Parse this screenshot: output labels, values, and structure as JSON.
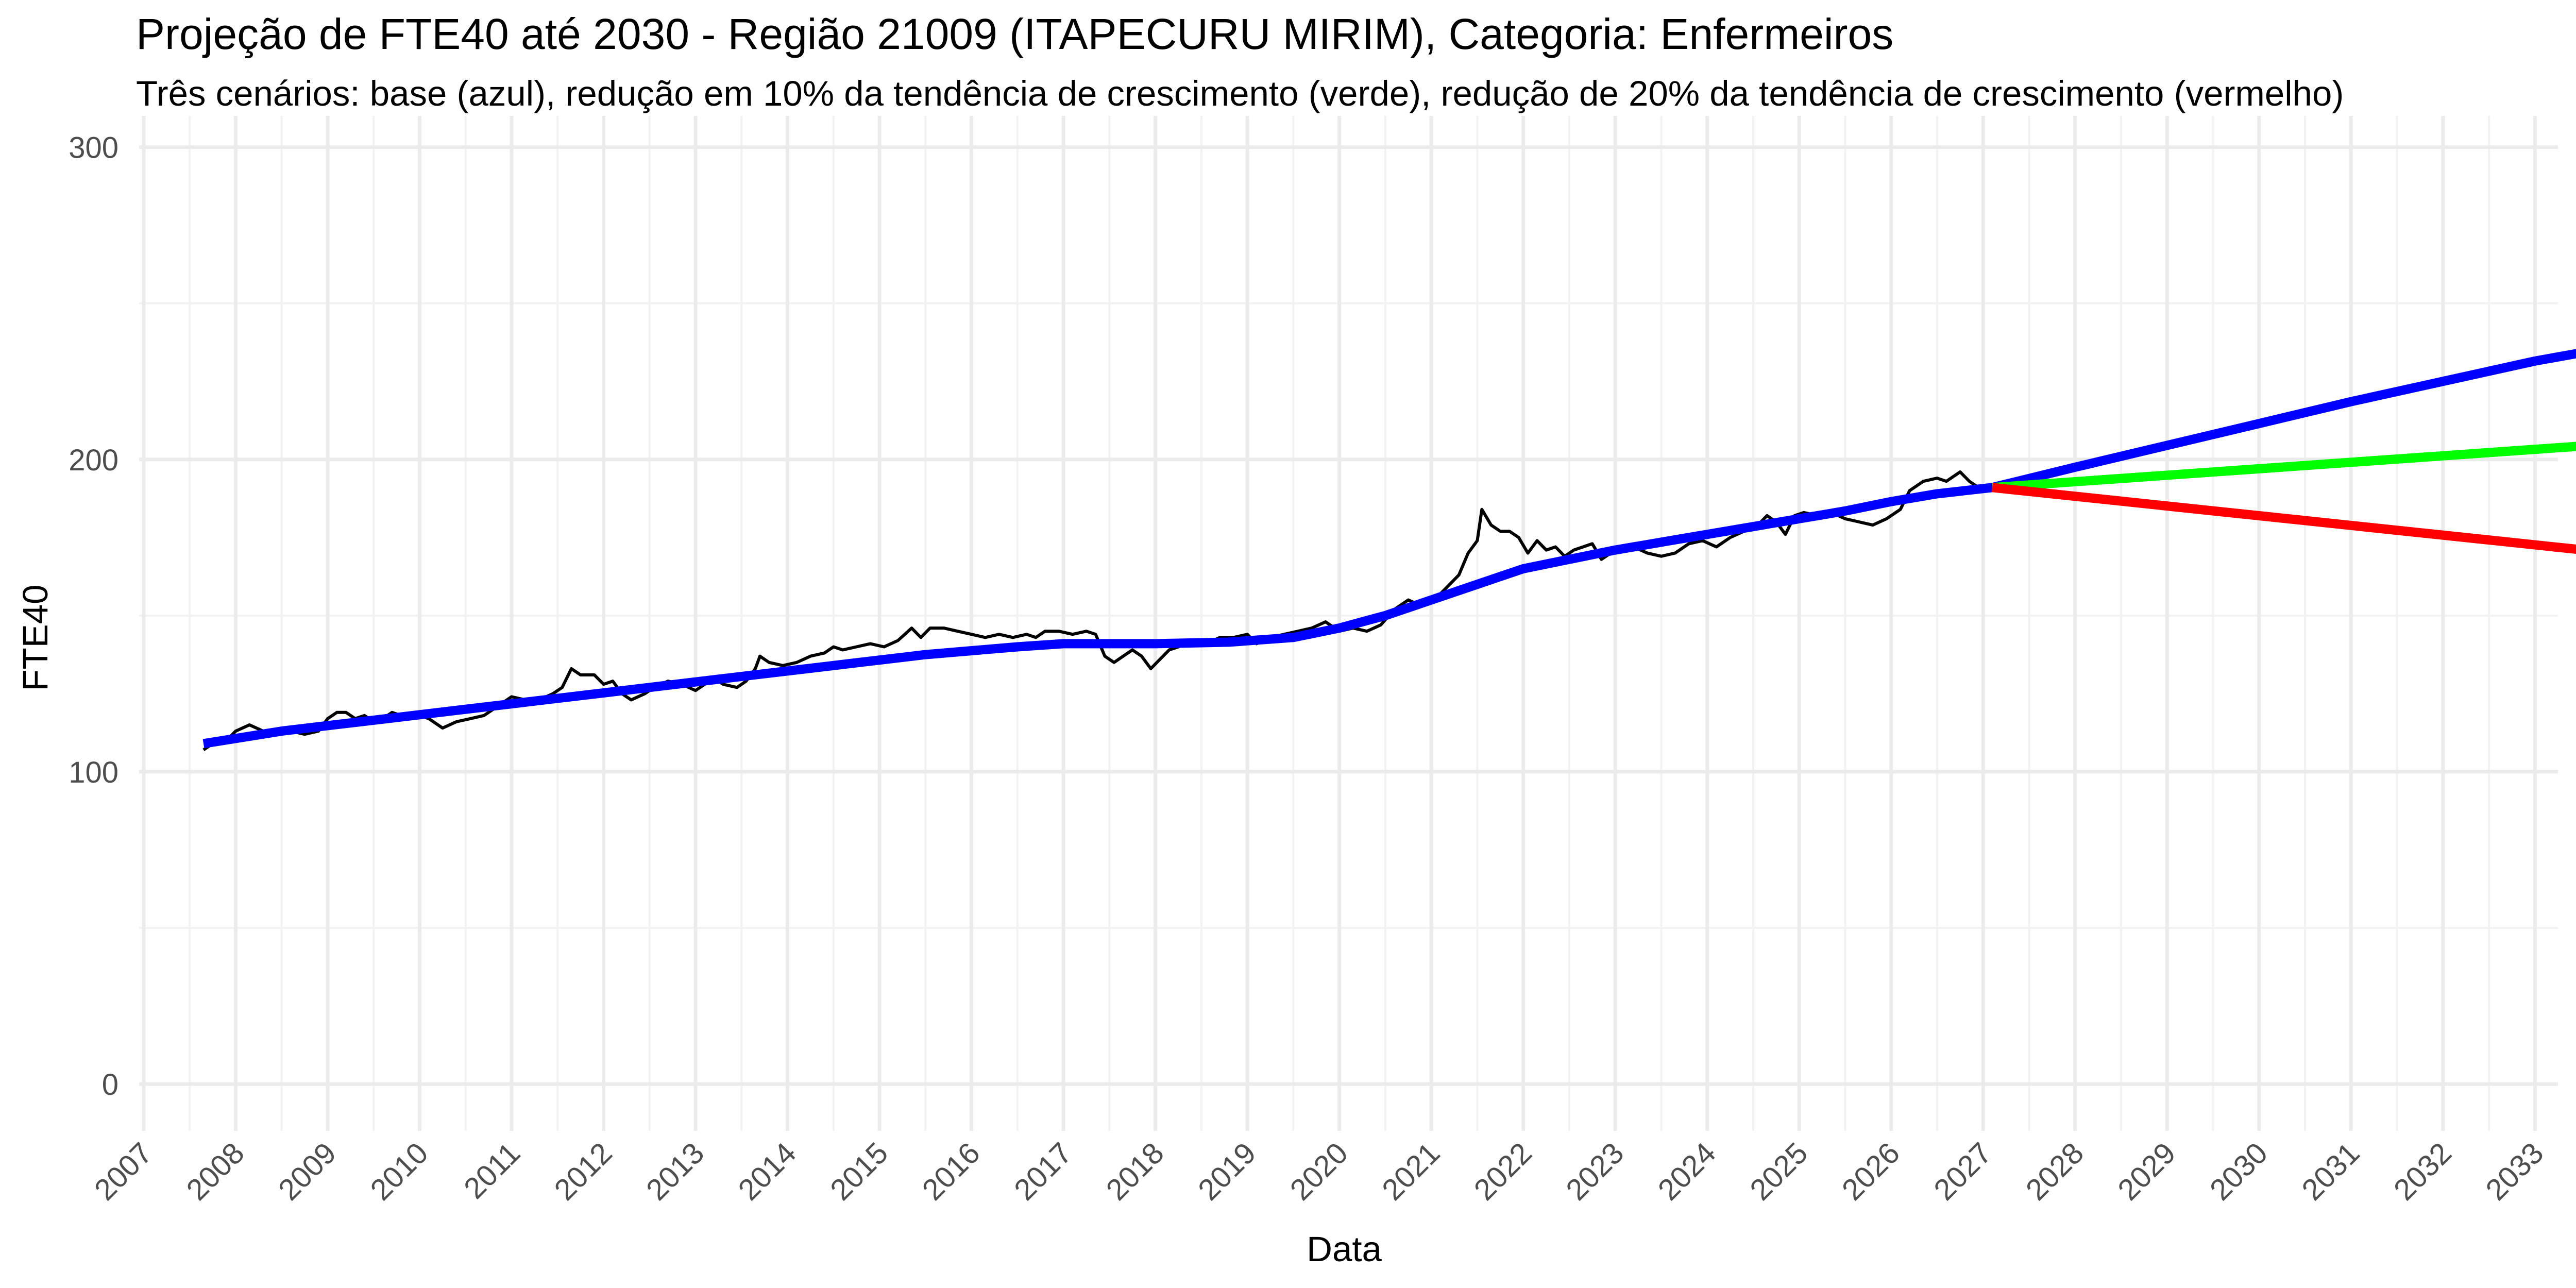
{
  "chart_data": {
    "type": "line",
    "title": "Projeção de FTE40 até 2030 - Região 21009 (ITAPECURU MIRIM), Categoria: Enfermeiros",
    "subtitle": "Três cenários: base (azul), redução em 10% da tendência de crescimento (verde), redução de 20% da tendência de crescimento (vermelho)",
    "xlabel": "Data",
    "ylabel": "FTE40",
    "xlim": [
      2006.95,
      2033.25
    ],
    "ylim": [
      -15,
      310
    ],
    "x_ticks": [
      2007,
      2008,
      2009,
      2010,
      2011,
      2012,
      2013,
      2014,
      2015,
      2016,
      2017,
      2018,
      2019,
      2020,
      2021,
      2022,
      2023,
      2024,
      2025,
      2026,
      2027,
      2028,
      2029,
      2030,
      2031,
      2032,
      2033
    ],
    "x_tick_labels": [
      "2007",
      "2008",
      "2009",
      "2010",
      "2011",
      "2012",
      "2013",
      "2014",
      "2015",
      "2016",
      "2017",
      "2018",
      "2019",
      "2020",
      "2021",
      "2022",
      "2023",
      "2024",
      "2025",
      "2026",
      "2027",
      "2028",
      "2029",
      "2030",
      "2031",
      "2032",
      "2033"
    ],
    "y_ticks": [
      0,
      100,
      200,
      300
    ],
    "y_tick_labels": [
      "0",
      "100",
      "200",
      "300"
    ],
    "grid": true,
    "legend": "none",
    "series": [
      {
        "color": "#000000",
        "width": 6,
        "points": [
          [
            2007.65,
            107
          ],
          [
            2007.75,
            109
          ],
          [
            2007.9,
            110
          ],
          [
            2008.0,
            113
          ],
          [
            2008.15,
            115
          ],
          [
            2008.3,
            113
          ],
          [
            2008.45,
            112
          ],
          [
            2008.6,
            113
          ],
          [
            2008.75,
            112
          ],
          [
            2008.9,
            113
          ],
          [
            2009.0,
            117
          ],
          [
            2009.1,
            119
          ],
          [
            2009.2,
            119
          ],
          [
            2009.3,
            117
          ],
          [
            2009.4,
            118
          ],
          [
            2009.5,
            116
          ],
          [
            2009.6,
            117
          ],
          [
            2009.7,
            119
          ],
          [
            2009.8,
            118
          ],
          [
            2009.9,
            118
          ],
          [
            2010.0,
            118
          ],
          [
            2010.1,
            117
          ],
          [
            2010.25,
            114
          ],
          [
            2010.4,
            116
          ],
          [
            2010.55,
            117
          ],
          [
            2010.7,
            118
          ],
          [
            2010.85,
            121
          ],
          [
            2011.0,
            124
          ],
          [
            2011.15,
            123
          ],
          [
            2011.3,
            123
          ],
          [
            2011.45,
            125
          ],
          [
            2011.55,
            127
          ],
          [
            2011.65,
            133
          ],
          [
            2011.75,
            131
          ],
          [
            2011.9,
            131
          ],
          [
            2012.0,
            128
          ],
          [
            2012.1,
            129
          ],
          [
            2012.2,
            125
          ],
          [
            2012.3,
            123
          ],
          [
            2012.45,
            125
          ],
          [
            2012.55,
            127
          ],
          [
            2012.7,
            129
          ],
          [
            2012.85,
            128
          ],
          [
            2013.0,
            126
          ],
          [
            2013.1,
            128
          ],
          [
            2013.2,
            130
          ],
          [
            2013.3,
            128
          ],
          [
            2013.45,
            127
          ],
          [
            2013.55,
            129
          ],
          [
            2013.65,
            133
          ],
          [
            2013.7,
            137
          ],
          [
            2013.8,
            135
          ],
          [
            2013.95,
            134
          ],
          [
            2014.1,
            135
          ],
          [
            2014.25,
            137
          ],
          [
            2014.4,
            138
          ],
          [
            2014.5,
            140
          ],
          [
            2014.6,
            139
          ],
          [
            2014.75,
            140
          ],
          [
            2014.9,
            141
          ],
          [
            2015.05,
            140
          ],
          [
            2015.2,
            142
          ],
          [
            2015.35,
            146
          ],
          [
            2015.45,
            143
          ],
          [
            2015.55,
            146
          ],
          [
            2015.7,
            146
          ],
          [
            2015.85,
            145
          ],
          [
            2016.0,
            144
          ],
          [
            2016.15,
            143
          ],
          [
            2016.3,
            144
          ],
          [
            2016.45,
            143
          ],
          [
            2016.6,
            144
          ],
          [
            2016.7,
            143
          ],
          [
            2016.8,
            145
          ],
          [
            2016.95,
            145
          ],
          [
            2017.1,
            144
          ],
          [
            2017.25,
            145
          ],
          [
            2017.35,
            144
          ],
          [
            2017.45,
            137
          ],
          [
            2017.55,
            135
          ],
          [
            2017.65,
            137
          ],
          [
            2017.75,
            139
          ],
          [
            2017.85,
            137
          ],
          [
            2017.95,
            133
          ],
          [
            2018.05,
            136
          ],
          [
            2018.15,
            139
          ],
          [
            2018.25,
            140
          ],
          [
            2018.4,
            142
          ],
          [
            2018.55,
            141
          ],
          [
            2018.7,
            143
          ],
          [
            2018.85,
            143
          ],
          [
            2019.0,
            144
          ],
          [
            2019.1,
            141
          ],
          [
            2019.25,
            143
          ],
          [
            2019.4,
            144
          ],
          [
            2019.55,
            145
          ],
          [
            2019.7,
            146
          ],
          [
            2019.85,
            148
          ],
          [
            2020.0,
            145
          ],
          [
            2020.15,
            146
          ],
          [
            2020.3,
            145
          ],
          [
            2020.45,
            147
          ],
          [
            2020.6,
            152
          ],
          [
            2020.75,
            155
          ],
          [
            2020.9,
            153
          ],
          [
            2021.0,
            156
          ],
          [
            2021.1,
            157
          ],
          [
            2021.2,
            160
          ],
          [
            2021.3,
            163
          ],
          [
            2021.4,
            170
          ],
          [
            2021.5,
            174
          ],
          [
            2021.55,
            184
          ],
          [
            2021.65,
            179
          ],
          [
            2021.75,
            177
          ],
          [
            2021.85,
            177
          ],
          [
            2021.95,
            175
          ],
          [
            2022.05,
            170
          ],
          [
            2022.15,
            174
          ],
          [
            2022.25,
            171
          ],
          [
            2022.35,
            172
          ],
          [
            2022.45,
            169
          ],
          [
            2022.55,
            171
          ],
          [
            2022.65,
            172
          ],
          [
            2022.75,
            173
          ],
          [
            2022.85,
            168
          ],
          [
            2022.95,
            170
          ],
          [
            2023.05,
            172
          ],
          [
            2023.2,
            172
          ],
          [
            2023.35,
            170
          ],
          [
            2023.5,
            169
          ],
          [
            2023.65,
            170
          ],
          [
            2023.8,
            173
          ],
          [
            2023.95,
            174
          ],
          [
            2024.1,
            172
          ],
          [
            2024.25,
            175
          ],
          [
            2024.4,
            177
          ],
          [
            2024.55,
            179
          ],
          [
            2024.65,
            182
          ],
          [
            2024.75,
            180
          ],
          [
            2024.85,
            176
          ],
          [
            2024.95,
            182
          ],
          [
            2025.05,
            183
          ],
          [
            2025.2,
            182
          ],
          [
            2025.35,
            183
          ],
          [
            2025.5,
            181
          ],
          [
            2025.65,
            180
          ],
          [
            2025.8,
            179
          ],
          [
            2025.95,
            181
          ],
          [
            2026.1,
            184
          ],
          [
            2026.2,
            190
          ],
          [
            2026.35,
            193
          ],
          [
            2026.5,
            194
          ],
          [
            2026.6,
            193
          ],
          [
            2026.75,
            196
          ],
          [
            2026.85,
            193
          ],
          [
            2026.95,
            191
          ]
        ]
      },
      {
        "color": "#0000ff",
        "width": 18,
        "points": [
          [
            2007.65,
            109
          ],
          [
            2008.5,
            113
          ],
          [
            2009.5,
            116.5
          ],
          [
            2010.5,
            120
          ],
          [
            2011.5,
            123.5
          ],
          [
            2012.5,
            127
          ],
          [
            2013.5,
            130.5
          ],
          [
            2014.5,
            134
          ],
          [
            2015.5,
            137.5
          ],
          [
            2016.5,
            140
          ],
          [
            2017.0,
            141
          ],
          [
            2018.0,
            141
          ],
          [
            2018.8,
            141.5
          ],
          [
            2019.5,
            143
          ],
          [
            2020.0,
            146
          ],
          [
            2020.5,
            150
          ],
          [
            2021.0,
            155
          ],
          [
            2021.5,
            160
          ],
          [
            2022.0,
            165
          ],
          [
            2022.5,
            168
          ],
          [
            2023.0,
            171
          ],
          [
            2023.5,
            173.5
          ],
          [
            2024.0,
            176
          ],
          [
            2024.5,
            178.5
          ],
          [
            2025.0,
            181
          ],
          [
            2025.5,
            183.5
          ],
          [
            2026.0,
            186.5
          ],
          [
            2026.5,
            189
          ],
          [
            2027.1,
            191
          ],
          [
            2028.0,
            197.5
          ],
          [
            2029.0,
            204.5
          ],
          [
            2030.0,
            211.5
          ],
          [
            2031.0,
            218.5
          ],
          [
            2032.0,
            225
          ],
          [
            2033.0,
            231.5
          ],
          [
            2033.85,
            236
          ]
        ]
      },
      {
        "color": "#00ff00",
        "width": 18,
        "points": [
          [
            2027.1,
            191
          ],
          [
            2033.85,
            205
          ]
        ]
      },
      {
        "color": "#ff0000",
        "width": 18,
        "points": [
          [
            2027.1,
            191
          ],
          [
            2033.85,
            170
          ]
        ]
      }
    ]
  }
}
